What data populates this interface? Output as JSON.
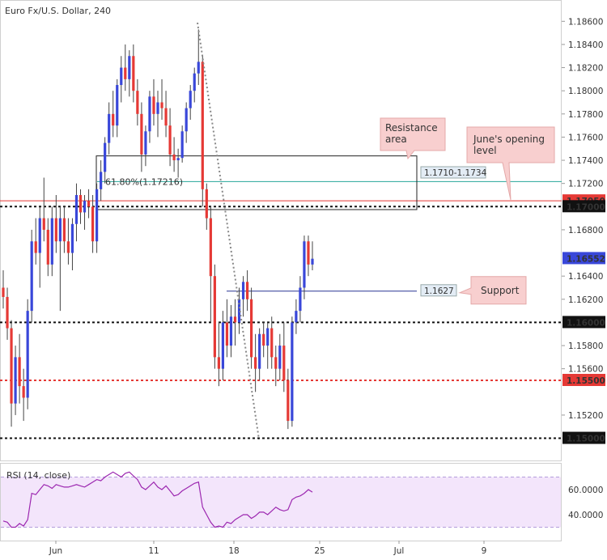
{
  "chart_data": {
    "type": "candlestick",
    "title": "Euro Fx/U.S. Dollar, 240",
    "ylim": [
      1.1492,
      1.187
    ],
    "y_ticks": [
      "1.18600",
      "1.18400",
      "1.18200",
      "1.18000",
      "1.17800",
      "1.17600",
      "1.17400",
      "1.17200",
      "1.16800",
      "1.16400",
      "1.16200",
      "1.15800",
      "1.15600",
      "1.15200"
    ],
    "x_ticks": [
      "Jun",
      "11",
      "18",
      "25",
      "Jul",
      "9"
    ],
    "price_labels": [
      {
        "value": "1.17050",
        "color": "#e53935"
      },
      {
        "value": "1.17000",
        "color": "#111111"
      },
      {
        "value": "1.16552",
        "color": "#3947d9"
      },
      {
        "value": "1.16000",
        "color": "#111111"
      },
      {
        "value": "1.15500",
        "color": "#e53935"
      },
      {
        "value": "1.15000",
        "color": "#111111"
      }
    ],
    "candles": [
      [
        1.163,
        1.1645,
        1.1612,
        1.1622
      ],
      [
        1.1622,
        1.163,
        1.1585,
        1.1595
      ],
      [
        1.1595,
        1.1602,
        1.151,
        1.153
      ],
      [
        1.153,
        1.158,
        1.152,
        1.157
      ],
      [
        1.157,
        1.159,
        1.153,
        1.1545
      ],
      [
        1.1545,
        1.156,
        1.1515,
        1.1535
      ],
      [
        1.1535,
        1.162,
        1.1525,
        1.161
      ],
      [
        1.161,
        1.168,
        1.16,
        1.167
      ],
      [
        1.167,
        1.169,
        1.165,
        1.166
      ],
      [
        1.166,
        1.17,
        1.163,
        1.169
      ],
      [
        1.169,
        1.1725,
        1.167,
        1.168
      ],
      [
        1.168,
        1.169,
        1.164,
        1.165
      ],
      [
        1.165,
        1.17,
        1.164,
        1.169
      ],
      [
        1.169,
        1.171,
        1.166,
        1.167
      ],
      [
        1.167,
        1.17,
        1.161,
        1.169
      ],
      [
        1.169,
        1.17,
        1.166,
        1.167
      ],
      [
        1.167,
        1.169,
        1.165,
        1.166
      ],
      [
        1.166,
        1.169,
        1.1645,
        1.1685
      ],
      [
        1.1685,
        1.172,
        1.167,
        1.171
      ],
      [
        1.171,
        1.1715,
        1.1685,
        1.1695
      ],
      [
        1.1695,
        1.171,
        1.168,
        1.1705
      ],
      [
        1.1705,
        1.1715,
        1.169,
        1.17
      ],
      [
        1.17,
        1.171,
        1.166,
        1.167
      ],
      [
        1.167,
        1.172,
        1.166,
        1.1715
      ],
      [
        1.1715,
        1.174,
        1.1705,
        1.173
      ],
      [
        1.173,
        1.176,
        1.172,
        1.1755
      ],
      [
        1.1755,
        1.179,
        1.1745,
        1.178
      ],
      [
        1.178,
        1.18,
        1.176,
        1.177
      ],
      [
        1.177,
        1.181,
        1.176,
        1.1805
      ],
      [
        1.1805,
        1.183,
        1.179,
        1.182
      ],
      [
        1.182,
        1.184,
        1.18,
        1.181
      ],
      [
        1.181,
        1.1835,
        1.1795,
        1.183
      ],
      [
        1.183,
        1.184,
        1.179,
        1.18
      ],
      [
        1.18,
        1.181,
        1.177,
        1.178
      ],
      [
        1.178,
        1.179,
        1.173,
        1.1745
      ],
      [
        1.1745,
        1.177,
        1.1735,
        1.1765
      ],
      [
        1.1765,
        1.18,
        1.1755,
        1.1795
      ],
      [
        1.1795,
        1.181,
        1.177,
        1.178
      ],
      [
        1.178,
        1.18,
        1.176,
        1.179
      ],
      [
        1.179,
        1.181,
        1.1775,
        1.1785
      ],
      [
        1.1785,
        1.18,
        1.176,
        1.177
      ],
      [
        1.177,
        1.1785,
        1.1735,
        1.1745
      ],
      [
        1.1745,
        1.176,
        1.173,
        1.174
      ],
      [
        1.174,
        1.175,
        1.1725,
        1.1742
      ],
      [
        1.1742,
        1.177,
        1.1738,
        1.1765
      ],
      [
        1.1765,
        1.179,
        1.1755,
        1.1785
      ],
      [
        1.1785,
        1.1805,
        1.1775,
        1.18
      ],
      [
        1.18,
        1.182,
        1.179,
        1.1815
      ],
      [
        1.1815,
        1.1853,
        1.1805,
        1.1825
      ],
      [
        1.1825,
        1.183,
        1.17,
        1.1715
      ],
      [
        1.1715,
        1.172,
        1.168,
        1.169
      ],
      [
        1.169,
        1.17,
        1.16,
        1.164
      ],
      [
        1.164,
        1.165,
        1.156,
        1.157
      ],
      [
        1.157,
        1.16,
        1.1545,
        1.156
      ],
      [
        1.156,
        1.161,
        1.155,
        1.16
      ],
      [
        1.16,
        1.162,
        1.157,
        1.158
      ],
      [
        1.158,
        1.1615,
        1.157,
        1.1605
      ],
      [
        1.1605,
        1.162,
        1.158,
        1.16
      ],
      [
        1.16,
        1.163,
        1.159,
        1.162
      ],
      [
        1.162,
        1.164,
        1.1605,
        1.1635
      ],
      [
        1.1635,
        1.1645,
        1.161,
        1.162
      ],
      [
        1.162,
        1.163,
        1.156,
        1.157
      ],
      [
        1.157,
        1.159,
        1.154,
        1.156
      ],
      [
        1.156,
        1.1595,
        1.155,
        1.159
      ],
      [
        1.159,
        1.16,
        1.157,
        1.158
      ],
      [
        1.158,
        1.16,
        1.156,
        1.1595
      ],
      [
        1.1595,
        1.1605,
        1.156,
        1.157
      ],
      [
        1.157,
        1.158,
        1.1545,
        1.156
      ],
      [
        1.156,
        1.159,
        1.155,
        1.158
      ],
      [
        1.158,
        1.16,
        1.154,
        1.155
      ],
      [
        1.155,
        1.156,
        1.1508,
        1.1515
      ],
      [
        1.1515,
        1.1605,
        1.151,
        1.16
      ],
      [
        1.16,
        1.162,
        1.159,
        1.161
      ],
      [
        1.161,
        1.164,
        1.16,
        1.163
      ],
      [
        1.163,
        1.1675,
        1.162,
        1.167
      ],
      [
        1.167,
        1.1675,
        1.164,
        1.165
      ],
      [
        1.165,
        1.167,
        1.1645,
        1.1655
      ]
    ],
    "x_labels_text": {
      "dma_pivot": "",
      "fib": "61.80%(1.17216)"
    },
    "annotations": {
      "resistance": "Resistance area",
      "resistance_range": "1.1710-1.1734",
      "june_open": "June's opening level",
      "support": "Support",
      "support_label": "1.1627"
    },
    "levels": {
      "red_solid": 1.1705,
      "black_dashed": [
        1.17,
        1.16,
        1.15
      ],
      "red_dashed": 1.155,
      "fib_line": 1.17216,
      "support_line": 1.1627,
      "resistance_zone": [
        1.171,
        1.1734
      ]
    },
    "rsi": {
      "title": "RSI (14, close)",
      "ticks": [
        "60.0000",
        "40.0000"
      ],
      "ylim": [
        20,
        80
      ],
      "band": [
        30,
        70
      ],
      "values": [
        35,
        34,
        30,
        30,
        33,
        31,
        36,
        57,
        56,
        60,
        64,
        63,
        61,
        64,
        63,
        62,
        62,
        63,
        64,
        63,
        62,
        64,
        66,
        68,
        67,
        70,
        72,
        74,
        72,
        70,
        73,
        74,
        71,
        68,
        62,
        60,
        63,
        66,
        62,
        60,
        63,
        59,
        55,
        56,
        59,
        61,
        63,
        65,
        66,
        46,
        40,
        34,
        30,
        31,
        30,
        34,
        33,
        36,
        38,
        40,
        40,
        37,
        39,
        42,
        42,
        40,
        43,
        46,
        44,
        43,
        44,
        52,
        54,
        55,
        57,
        60,
        58
      ]
    },
    "colors": {
      "bull": "#3947d9",
      "bear": "#e53935",
      "fib": "#26a69a",
      "rsi": "#9c27b0",
      "rsi_bg": "#f3e5fb"
    }
  }
}
